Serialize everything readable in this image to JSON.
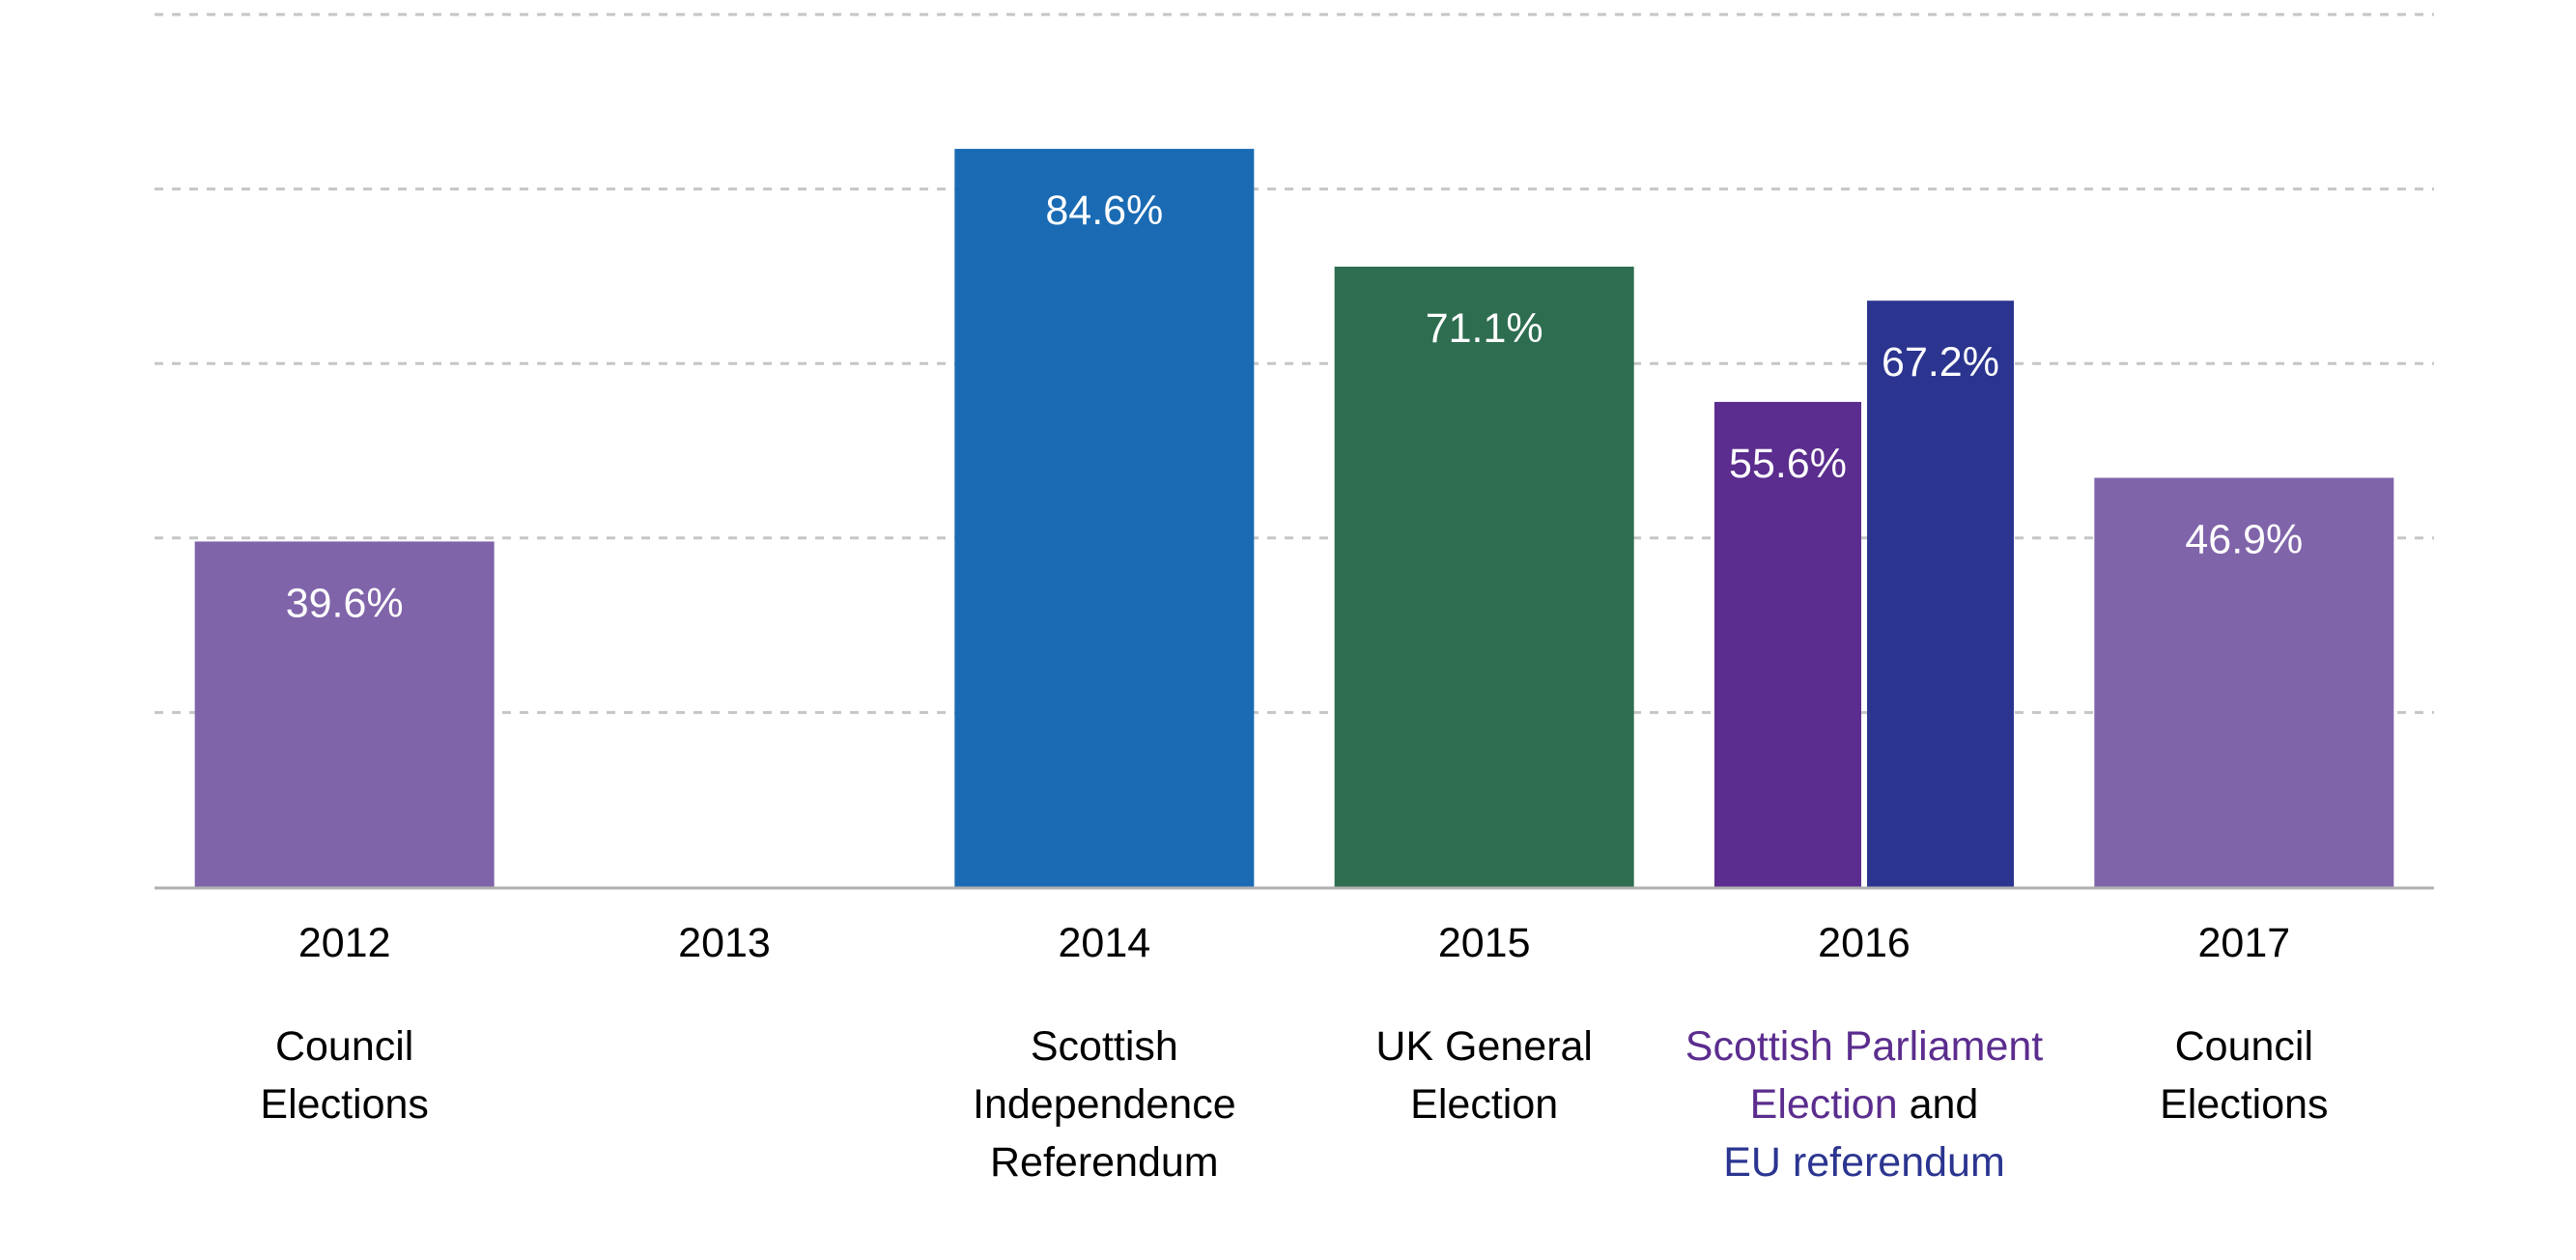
{
  "chart_data": {
    "type": "bar",
    "title": "",
    "xlabel": "",
    "ylabel": "",
    "ylim": [
      0,
      100
    ],
    "grid": true,
    "y_tick_labels_visible": false,
    "categories": [
      "2012",
      "2013",
      "2014",
      "2015",
      "2016",
      "2017"
    ],
    "category_descriptions": [
      {
        "lines": [
          [
            {
              "text": "Council",
              "color": "#000000"
            }
          ],
          [
            {
              "text": "Elections",
              "color": "#000000"
            }
          ]
        ]
      },
      {
        "lines": []
      },
      {
        "lines": [
          [
            {
              "text": "Scottish",
              "color": "#000000"
            }
          ],
          [
            {
              "text": "Independence",
              "color": "#000000"
            }
          ],
          [
            {
              "text": "Referendum",
              "color": "#000000"
            }
          ]
        ]
      },
      {
        "lines": [
          [
            {
              "text": "UK General",
              "color": "#000000"
            }
          ],
          [
            {
              "text": "Election",
              "color": "#000000"
            }
          ]
        ]
      },
      {
        "lines": [
          [
            {
              "text": "Scottish Parliament",
              "color": "#5b2d8e"
            }
          ],
          [
            {
              "text": "Election",
              "color": "#5b2d8e"
            },
            {
              "text": " and",
              "color": "#000000"
            }
          ],
          [
            {
              "text": "EU referendum",
              "color": "#2b3590"
            }
          ]
        ]
      },
      {
        "lines": [
          [
            {
              "text": "Council",
              "color": "#000000"
            }
          ],
          [
            {
              "text": "Elections",
              "color": "#000000"
            }
          ]
        ]
      }
    ],
    "bars": [
      {
        "category": "2012",
        "value": 39.6,
        "label": "39.6%",
        "color": "#8064aa"
      },
      {
        "category": "2014",
        "value": 84.6,
        "label": "84.6%",
        "color": "#1a6bb3"
      },
      {
        "category": "2015",
        "value": 71.1,
        "label": "71.1%",
        "color": "#2e6d50"
      },
      {
        "category": "2016",
        "value": 55.6,
        "label": "55.6%",
        "color": "#5b2d8e",
        "sub": 0,
        "of": 2
      },
      {
        "category": "2016",
        "value": 67.2,
        "label": "67.2%",
        "color": "#2b3590",
        "sub": 1,
        "of": 2
      },
      {
        "category": "2017",
        "value": 46.9,
        "label": "46.9%",
        "color": "#8064aa"
      }
    ]
  }
}
